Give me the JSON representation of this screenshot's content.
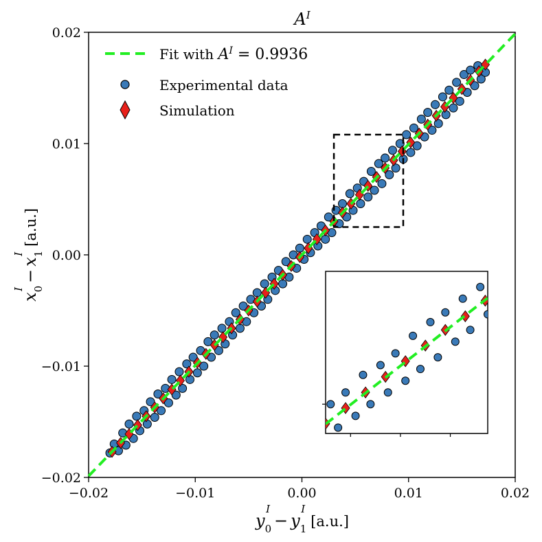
{
  "chart_data": {
    "type": "scatter",
    "title": "A",
    "title_sup": "I",
    "xlabel": {
      "main": "y",
      "sub0": "0",
      "sub1": "1",
      "sup": "I",
      "minus": "−",
      "unit": "[a.u.]"
    },
    "ylabel": {
      "main": "x",
      "sub0": "0",
      "sub1": "1",
      "sup": "I",
      "minus": "−",
      "unit": "[a.u.]"
    },
    "xlim": [
      -0.02,
      0.02
    ],
    "ylim": [
      -0.02,
      0.02
    ],
    "xticks": [
      -0.02,
      -0.01,
      0.0,
      0.01,
      0.02
    ],
    "yticks": [
      -0.02,
      -0.01,
      0.0,
      0.01,
      0.02
    ],
    "xtick_labels": [
      "−0.02",
      "−0.01",
      "0.00",
      "0.01",
      "0.02"
    ],
    "ytick_labels": [
      "−0.02",
      "−0.01",
      "0.00",
      "0.01",
      "0.02"
    ],
    "legend": {
      "placement": "top-left",
      "entries": [
        {
          "key": "fit",
          "label_prefix": "Fit with ",
          "label_math": "A",
          "label_sup": "I",
          "label_suffix": " = 0.9936",
          "color": "#22ee22"
        },
        {
          "key": "experimental",
          "label": "Experimental data",
          "color": "#3a7ab8"
        },
        {
          "key": "simulation",
          "label": "Simulation",
          "color": "#e8201a"
        }
      ]
    },
    "fit": {
      "slope": 0.9936,
      "intercept": 0.0,
      "x_range": [
        -0.02,
        0.02
      ]
    },
    "series": [
      {
        "name": "Experimental data",
        "marker": "circle",
        "color": "#3a7ab8",
        "points": [
          [
            -0.018,
            -0.0178
          ],
          [
            -0.0176,
            -0.017
          ],
          [
            -0.0172,
            -0.0176
          ],
          [
            -0.0168,
            -0.016
          ],
          [
            -0.0165,
            -0.0171
          ],
          [
            -0.0162,
            -0.0152
          ],
          [
            -0.0158,
            -0.0165
          ],
          [
            -0.0155,
            -0.0145
          ],
          [
            -0.0152,
            -0.0158
          ],
          [
            -0.0148,
            -0.014
          ],
          [
            -0.0145,
            -0.0152
          ],
          [
            -0.0142,
            -0.0132
          ],
          [
            -0.0138,
            -0.0146
          ],
          [
            -0.0135,
            -0.0125
          ],
          [
            -0.0132,
            -0.014
          ],
          [
            -0.0128,
            -0.012
          ],
          [
            -0.0125,
            -0.0133
          ],
          [
            -0.0122,
            -0.0112
          ],
          [
            -0.0118,
            -0.0126
          ],
          [
            -0.0115,
            -0.0105
          ],
          [
            -0.0112,
            -0.012
          ],
          [
            -0.0108,
            -0.0098
          ],
          [
            -0.0105,
            -0.0112
          ],
          [
            -0.0102,
            -0.0092
          ],
          [
            -0.0098,
            -0.0106
          ],
          [
            -0.0095,
            -0.0086
          ],
          [
            -0.0092,
            -0.01
          ],
          [
            -0.0088,
            -0.0078
          ],
          [
            -0.0085,
            -0.0092
          ],
          [
            -0.0082,
            -0.0072
          ],
          [
            -0.0078,
            -0.0086
          ],
          [
            -0.0075,
            -0.0066
          ],
          [
            -0.0072,
            -0.008
          ],
          [
            -0.0068,
            -0.006
          ],
          [
            -0.0065,
            -0.0072
          ],
          [
            -0.0062,
            -0.0052
          ],
          [
            -0.0058,
            -0.0066
          ],
          [
            -0.0055,
            -0.0046
          ],
          [
            -0.0052,
            -0.006
          ],
          [
            -0.0048,
            -0.004
          ],
          [
            -0.0045,
            -0.0052
          ],
          [
            -0.0042,
            -0.0034
          ],
          [
            -0.0038,
            -0.0046
          ],
          [
            -0.0035,
            -0.0026
          ],
          [
            -0.0032,
            -0.004
          ],
          [
            -0.0028,
            -0.002
          ],
          [
            -0.0025,
            -0.0032
          ],
          [
            -0.0022,
            -0.0014
          ],
          [
            -0.0018,
            -0.0026
          ],
          [
            -0.0015,
            -0.0006
          ],
          [
            -0.0012,
            -0.002
          ],
          [
            -0.0008,
            0.0
          ],
          [
            -0.0005,
            -0.0012
          ],
          [
            -0.0002,
            0.0006
          ],
          [
            0.0002,
            -0.0004
          ],
          [
            0.0005,
            0.0014
          ],
          [
            0.0008,
            0.0002
          ],
          [
            0.0012,
            0.002
          ],
          [
            0.0015,
            0.0008
          ],
          [
            0.0018,
            0.0026
          ],
          [
            0.0022,
            0.0014
          ],
          [
            0.0025,
            0.0034
          ],
          [
            0.0028,
            0.002
          ],
          [
            0.0032,
            0.004
          ],
          [
            0.0035,
            0.0028
          ],
          [
            0.0038,
            0.0046
          ],
          [
            0.0042,
            0.0034
          ],
          [
            0.0045,
            0.0055
          ],
          [
            0.0048,
            0.004
          ],
          [
            0.0052,
            0.006
          ],
          [
            0.0055,
            0.0046
          ],
          [
            0.0058,
            0.0066
          ],
          [
            0.0062,
            0.0052
          ],
          [
            0.0065,
            0.0075
          ],
          [
            0.0068,
            0.0058
          ],
          [
            0.0072,
            0.0082
          ],
          [
            0.0075,
            0.0064
          ],
          [
            0.0078,
            0.0087
          ],
          [
            0.0082,
            0.0072
          ],
          [
            0.0085,
            0.0094
          ],
          [
            0.0088,
            0.0078
          ],
          [
            0.0092,
            0.01
          ],
          [
            0.0095,
            0.0086
          ],
          [
            0.0098,
            0.0108
          ],
          [
            0.0102,
            0.0092
          ],
          [
            0.0105,
            0.0114
          ],
          [
            0.0108,
            0.0098
          ],
          [
            0.0112,
            0.0122
          ],
          [
            0.0115,
            0.0106
          ],
          [
            0.0118,
            0.0128
          ],
          [
            0.0122,
            0.0112
          ],
          [
            0.0125,
            0.0135
          ],
          [
            0.0128,
            0.0118
          ],
          [
            0.0132,
            0.0142
          ],
          [
            0.0135,
            0.0126
          ],
          [
            0.0138,
            0.0148
          ],
          [
            0.0142,
            0.0132
          ],
          [
            0.0145,
            0.0155
          ],
          [
            0.0148,
            0.0138
          ],
          [
            0.0152,
            0.0162
          ],
          [
            0.0155,
            0.0146
          ],
          [
            0.0158,
            0.0166
          ],
          [
            0.0162,
            0.0152
          ],
          [
            0.0165,
            0.017
          ],
          [
            0.0168,
            0.0158
          ],
          [
            0.0172,
            0.0164
          ]
        ]
      },
      {
        "name": "Simulation",
        "marker": "diamond",
        "color": "#e8201a",
        "points": [
          [
            -0.0178,
            -0.0177
          ],
          [
            -0.017,
            -0.0169
          ],
          [
            -0.0162,
            -0.0161
          ],
          [
            -0.0154,
            -0.0153
          ],
          [
            -0.0146,
            -0.0145
          ],
          [
            -0.0138,
            -0.0137
          ],
          [
            -0.013,
            -0.0129
          ],
          [
            -0.0122,
            -0.0121
          ],
          [
            -0.0114,
            -0.0113
          ],
          [
            -0.0106,
            -0.0105
          ],
          [
            -0.0098,
            -0.0097
          ],
          [
            -0.009,
            -0.0089
          ],
          [
            -0.0082,
            -0.0081
          ],
          [
            -0.0074,
            -0.0074
          ],
          [
            -0.0066,
            -0.0066
          ],
          [
            -0.0058,
            -0.0058
          ],
          [
            -0.005,
            -0.005
          ],
          [
            -0.0042,
            -0.0042
          ],
          [
            -0.0034,
            -0.0034
          ],
          [
            -0.0026,
            -0.0026
          ],
          [
            -0.0018,
            -0.0018
          ],
          [
            -0.001,
            -0.001
          ],
          [
            -0.0002,
            -0.0002
          ],
          [
            0.0006,
            0.0006
          ],
          [
            0.0014,
            0.0014
          ],
          [
            0.0022,
            0.0022
          ],
          [
            0.003,
            0.003
          ],
          [
            0.0038,
            0.0038
          ],
          [
            0.0046,
            0.0046
          ],
          [
            0.0054,
            0.0054
          ],
          [
            0.0062,
            0.0062
          ],
          [
            0.007,
            0.007
          ],
          [
            0.0078,
            0.0078
          ],
          [
            0.0086,
            0.0085
          ],
          [
            0.0094,
            0.0093
          ],
          [
            0.0102,
            0.0101
          ],
          [
            0.011,
            0.0109
          ],
          [
            0.0118,
            0.0117
          ],
          [
            0.0126,
            0.0125
          ],
          [
            0.0134,
            0.0133
          ],
          [
            0.0142,
            0.0141
          ],
          [
            0.015,
            0.0149
          ],
          [
            0.0158,
            0.0157
          ],
          [
            0.0166,
            0.0165
          ],
          [
            0.0172,
            0.0171
          ]
        ]
      }
    ],
    "zoom_box": {
      "xlim": [
        0.003,
        0.0095
      ],
      "ylim": [
        0.0025,
        0.0108
      ]
    },
    "inset": {
      "placement": "bottom-right",
      "xlim": [
        0.003,
        0.0095
      ],
      "ylim": [
        0.0025,
        0.0108
      ],
      "xticks": [
        0.004,
        0.006,
        0.008
      ],
      "yticks": [
        0.004
      ]
    }
  }
}
